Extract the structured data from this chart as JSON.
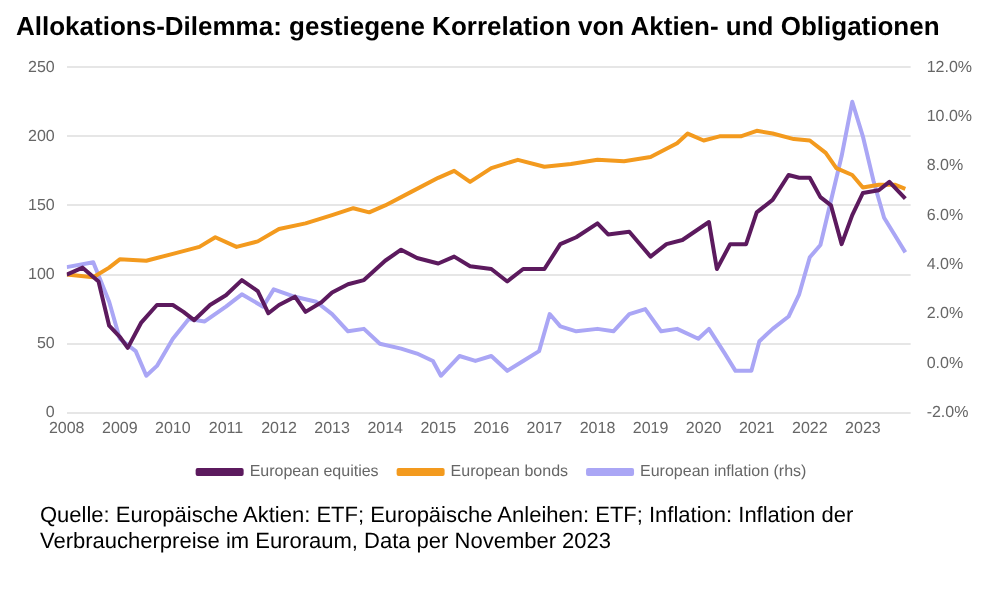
{
  "chart_data": {
    "type": "line",
    "title": "Allokations-Dilemma: gestiegene Korrelation von Aktien- und Obligationen",
    "xlim": [
      2008,
      2023.9
    ],
    "xticks": [
      2008,
      2009,
      2010,
      2011,
      2012,
      2013,
      2014,
      2015,
      2016,
      2017,
      2018,
      2019,
      2020,
      2021,
      2022,
      2023
    ],
    "ylim": [
      0,
      250
    ],
    "yticks": [
      0,
      50,
      100,
      150,
      200,
      250
    ],
    "y2lim": [
      -2,
      12
    ],
    "y2ticks": [
      {
        "value": -2,
        "label": "-2.0%"
      },
      {
        "value": 0,
        "label": "0.0%"
      },
      {
        "value": 2,
        "label": "2.0%"
      },
      {
        "value": 4,
        "label": "4.0%"
      },
      {
        "value": 6,
        "label": "6.0%"
      },
      {
        "value": 8,
        "label": "8.0%"
      },
      {
        "value": 10,
        "label": "10.0%"
      },
      {
        "value": 12,
        "label": "12.0%"
      }
    ],
    "grid": "y",
    "legend": "bottom",
    "marker": "none",
    "line_style": "solid",
    "series": [
      {
        "name": "European equities",
        "color": "#5c1a5e",
        "x": [
          2008,
          2008.3,
          2008.6,
          2008.8,
          2009,
          2009.15,
          2009.4,
          2009.7,
          2010,
          2010.2,
          2010.4,
          2010.7,
          2011,
          2011.3,
          2011.6,
          2011.8,
          2012,
          2012.3,
          2012.5,
          2012.8,
          2013,
          2013.3,
          2013.6,
          2014,
          2014.3,
          2014.6,
          2015,
          2015.3,
          2015.6,
          2016,
          2016.3,
          2016.6,
          2017,
          2017.3,
          2017.6,
          2018,
          2018.2,
          2018.6,
          2019,
          2019.3,
          2019.6,
          2020.1,
          2020.25,
          2020.5,
          2020.8,
          2021,
          2021.3,
          2021.6,
          2021.8,
          2022,
          2022.2,
          2022.4,
          2022.6,
          2022.8,
          2023,
          2023.3,
          2023.5,
          2023.8
        ],
        "values": [
          100,
          105,
          95,
          63,
          55,
          47,
          65,
          78,
          78,
          73,
          67,
          78,
          85,
          96,
          88,
          72,
          78,
          84,
          73,
          80,
          87,
          93,
          96,
          110,
          118,
          112,
          108,
          113,
          106,
          104,
          95,
          104,
          104,
          122,
          127,
          137,
          129,
          131,
          113,
          122,
          125,
          138,
          104,
          122,
          122,
          145,
          154,
          172,
          170,
          170,
          156,
          150,
          122,
          143,
          159,
          161,
          167,
          155
        ]
      },
      {
        "name": "European bonds",
        "color": "#f39a1e",
        "x": [
          2008,
          2008.5,
          2008.8,
          2009,
          2009.5,
          2010,
          2010.5,
          2010.8,
          2011.2,
          2011.6,
          2012,
          2012.5,
          2013,
          2013.4,
          2013.7,
          2014,
          2014.5,
          2015,
          2015.3,
          2015.6,
          2016,
          2016.5,
          2017,
          2017.5,
          2018,
          2018.5,
          2019,
          2019.5,
          2019.7,
          2020,
          2020.3,
          2020.7,
          2021,
          2021.3,
          2021.7,
          2022,
          2022.3,
          2022.5,
          2022.8,
          2023,
          2023.3,
          2023.6,
          2023.8
        ],
        "values": [
          100,
          98,
          105,
          111,
          110,
          115,
          120,
          127,
          120,
          124,
          133,
          137,
          143,
          148,
          145,
          150,
          160,
          170,
          175,
          167,
          177,
          183,
          178,
          180,
          183,
          182,
          185,
          195,
          202,
          197,
          200,
          200,
          204,
          202,
          198,
          197,
          188,
          177,
          172,
          163,
          165,
          165,
          162
        ]
      },
      {
        "name": "European inflation (rhs)",
        "color": "#aaa6f5",
        "axis": "y2",
        "x": [
          2008,
          2008.5,
          2008.8,
          2009,
          2009.3,
          2009.5,
          2009.7,
          2010,
          2010.3,
          2010.6,
          2011,
          2011.3,
          2011.7,
          2011.9,
          2012.3,
          2012.7,
          2013,
          2013.3,
          2013.6,
          2013.9,
          2014.3,
          2014.6,
          2014.9,
          2015.05,
          2015.4,
          2015.7,
          2016,
          2016.3,
          2016.6,
          2016.9,
          2017.1,
          2017.3,
          2017.6,
          2018,
          2018.3,
          2018.6,
          2018.9,
          2019.2,
          2019.5,
          2019.9,
          2020.1,
          2020.4,
          2020.6,
          2020.9,
          2021.05,
          2021.3,
          2021.6,
          2021.8,
          2022,
          2022.2,
          2022.4,
          2022.6,
          2022.8,
          2023,
          2023.2,
          2023.4,
          2023.6,
          2023.8
        ],
        "values": [
          3.9,
          4.1,
          2.5,
          1,
          0.5,
          -0.5,
          -0.1,
          1,
          1.8,
          1.7,
          2.3,
          2.8,
          2.3,
          3,
          2.7,
          2.5,
          2,
          1.3,
          1.4,
          0.8,
          0.6,
          0.4,
          0.1,
          -0.5,
          0.3,
          0.1,
          0.3,
          -0.3,
          0.1,
          0.5,
          2,
          1.5,
          1.3,
          1.4,
          1.3,
          2,
          2.2,
          1.3,
          1.4,
          1,
          1.4,
          0.4,
          -0.3,
          -0.3,
          0.9,
          1.4,
          1.9,
          2.8,
          4.3,
          4.8,
          6.6,
          8.4,
          10.6,
          9.2,
          7.4,
          5.9,
          5.2,
          4.5
        ]
      }
    ],
    "annotations": [
      "Quelle: Europäische Aktien: ETF; Europäische Anleihen: ETF; Inflation: Inflation der Verbraucherpreise im Euroraum, Data per November 2023"
    ]
  }
}
